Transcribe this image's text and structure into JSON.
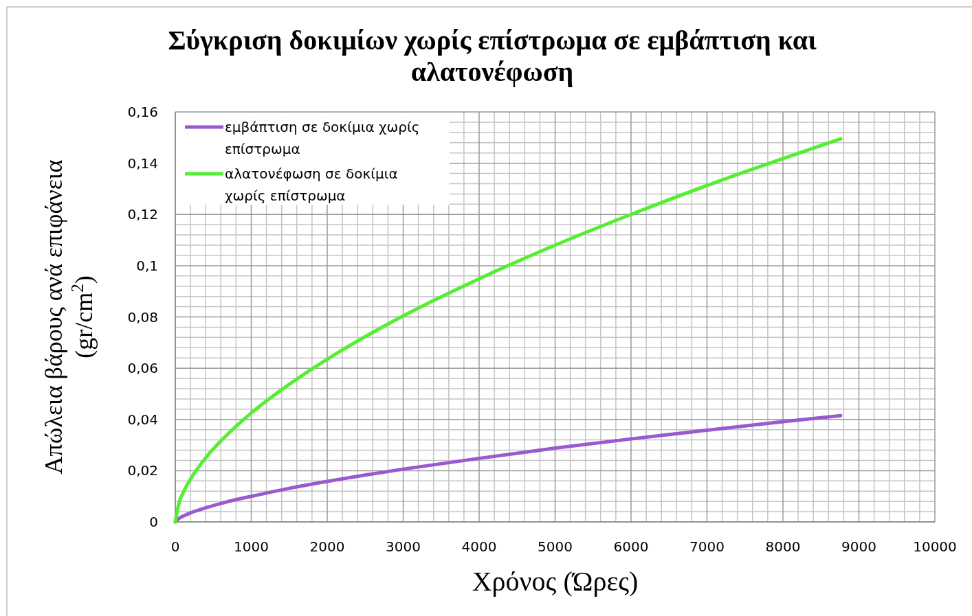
{
  "chart_data": {
    "type": "line",
    "title": "Σύγκριση δοκιμίων  χωρίς επίστρωμα σε εμβάπτιση και αλατονέφωση",
    "xlabel": "Χρόνος (Ώρες)",
    "ylabel": "Απώλεια  βάρους ανά επιφάνεια (gr/cm$^{2}$)",
    "x": [
      0,
      50,
      100,
      200,
      400,
      600,
      800,
      1000,
      1500,
      2000,
      2500,
      3000,
      4000,
      5000,
      6000,
      7000,
      8000,
      8760
    ],
    "series": [
      {
        "name": "εμβάπτιση σε δοκίμια χωρίς επίστρωμα",
        "color": "#9b59d0",
        "values": [
          0,
          0.0014,
          0.0022,
          0.0035,
          0.0055,
          0.0072,
          0.0087,
          0.01,
          0.0131,
          0.0158,
          0.0183,
          0.0206,
          0.0248,
          0.0288,
          0.0324,
          0.0358,
          0.0391,
          0.0415
        ]
      },
      {
        "name": "αλατονέφωση σε δοκίμια χωρίς επίστρωμα",
        "color": "#55ee33",
        "values": [
          0,
          0.0075,
          0.0112,
          0.0167,
          0.025,
          0.0316,
          0.0373,
          0.0425,
          0.0537,
          0.0635,
          0.0723,
          0.0804,
          0.0949,
          0.108,
          0.12,
          0.1313,
          0.1418,
          0.1495
        ]
      }
    ],
    "xlim": [
      0,
      10000
    ],
    "xticks": [
      0,
      1000,
      2000,
      3000,
      4000,
      5000,
      6000,
      7000,
      8000,
      9000,
      10000
    ],
    "ylim": [
      0,
      0.16
    ],
    "yticks": [
      0,
      {
        "value": 0.02,
        "label": "0,02"
      },
      {
        "value": 0.04,
        "label": "0,04"
      },
      {
        "value": 0.06,
        "label": "0,06"
      },
      {
        "value": 0.08,
        "label": "0,08"
      },
      {
        "value": 0.1,
        "label": "0,1"
      },
      {
        "value": 0.12,
        "label": "0,12"
      },
      {
        "value": 0.14,
        "label": "0,14"
      },
      {
        "value": 0.16,
        "label": "0,16"
      }
    ],
    "grid": true,
    "legend": "top left",
    "marker": "none",
    "line_style": "solid"
  }
}
